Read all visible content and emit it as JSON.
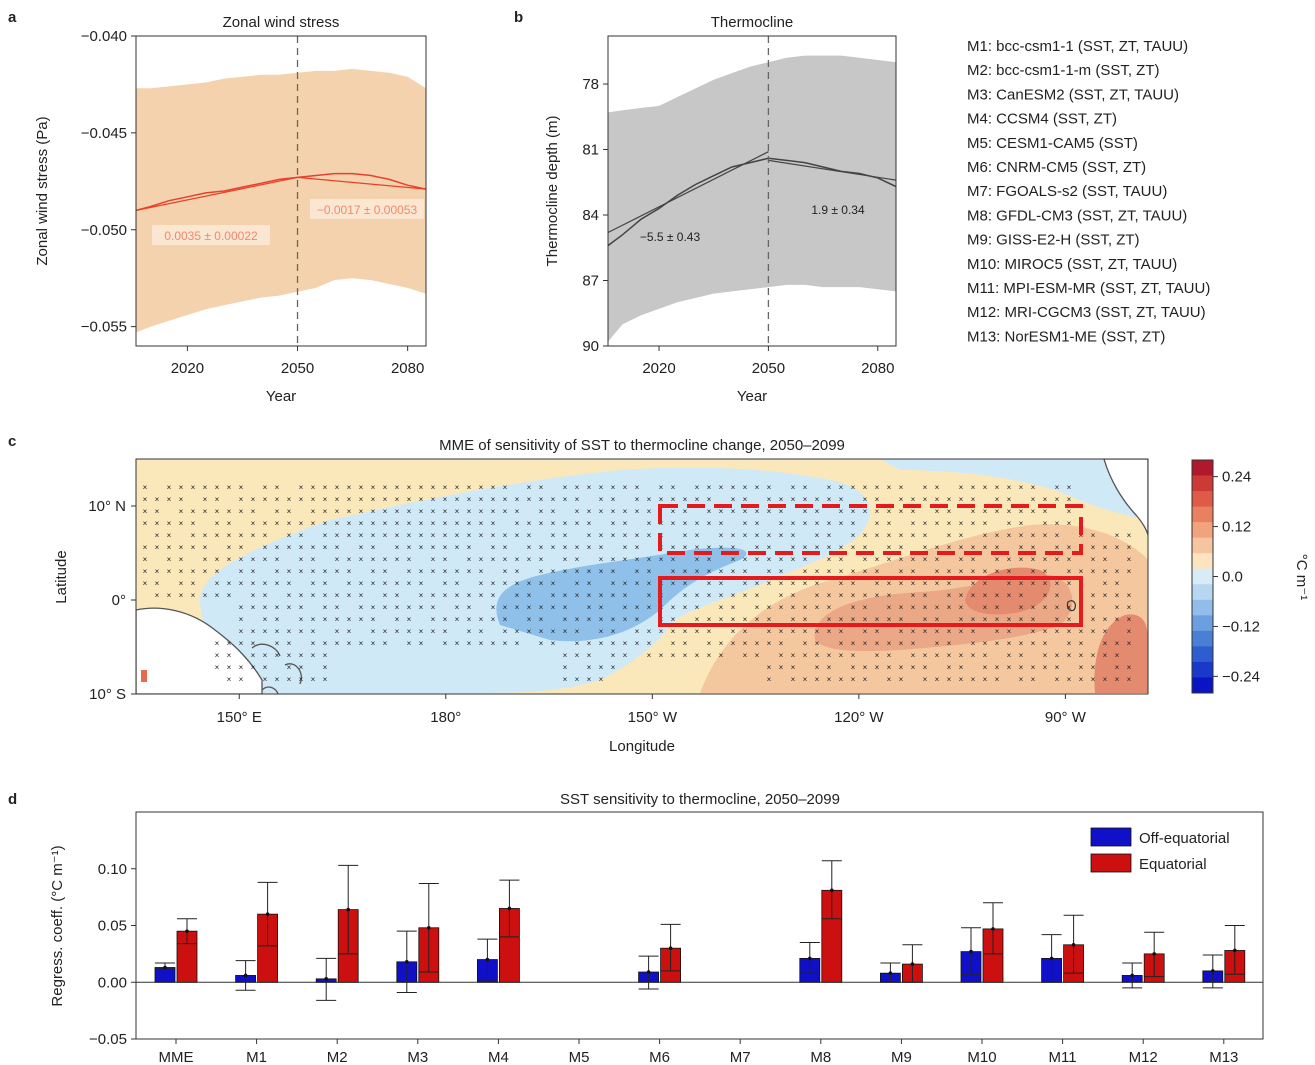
{
  "panel_letters": [
    "a",
    "b",
    "c",
    "d"
  ],
  "legend_models": [
    "M1:  bcc-csm1-1 (SST, ZT, TAUU)",
    "M2:  bcc-csm1-1-m (SST, ZT)",
    "M3:  CanESM2 (SST, ZT, TAUU)",
    "M4:  CCSM4 (SST, ZT)",
    "M5:  CESM1-CAM5 (SST)",
    "M6:  CNRM-CM5 (SST, ZT)",
    "M7:  FGOALS-s2 (SST, TAUU)",
    "M8:  GFDL-CM3 (SST, ZT, TAUU)",
    "M9:  GISS-E2-H (SST, ZT)",
    "M10:  MIROC5 (SST, ZT, TAUU)",
    "M11:  MPI-ESM-MR (SST, ZT, TAUU)",
    "M12:  MRI-CGCM3 (SST, ZT, TAUU)",
    "M13:  NorESM1-ME (SST, ZT)"
  ],
  "colors": {
    "wind_band": "#f5d2ae",
    "wind_line": "#e8402a",
    "wind_anno": "#f08a6a",
    "thermo_band": "#c7c7c7",
    "thermo_line": "#444444",
    "off_equatorial": "#1010c8",
    "equatorial": "#cc1010",
    "box_red": "#e41a1c"
  },
  "chart_data": [
    {
      "panel": "a",
      "type": "line",
      "title": "Zonal wind stress",
      "xlabel": "Year",
      "ylabel": "Zonal wind stress (Pa)",
      "xlim": [
        2006,
        2085
      ],
      "ylim": [
        -0.056,
        -0.04
      ],
      "y_inverted": true,
      "xticks": [
        "2020",
        "2050",
        "2080"
      ],
      "yticks": [
        "−0.040",
        "−0.045",
        "−0.050",
        "−0.055"
      ],
      "vline": 2050,
      "band_upper": [
        [
          2006,
          -0.0427
        ],
        [
          2010,
          -0.0427
        ],
        [
          2015,
          -0.0426
        ],
        [
          2020,
          -0.0425
        ],
        [
          2025,
          -0.0424
        ],
        [
          2030,
          -0.0422
        ],
        [
          2035,
          -0.0421
        ],
        [
          2040,
          -0.042
        ],
        [
          2045,
          -0.042
        ],
        [
          2050,
          -0.0419
        ],
        [
          2055,
          -0.0418
        ],
        [
          2060,
          -0.0418
        ],
        [
          2065,
          -0.0417
        ],
        [
          2070,
          -0.0418
        ],
        [
          2075,
          -0.0419
        ],
        [
          2080,
          -0.0421
        ],
        [
          2085,
          -0.0427
        ]
      ],
      "band_lower": [
        [
          2006,
          -0.0553
        ],
        [
          2010,
          -0.055
        ],
        [
          2015,
          -0.0547
        ],
        [
          2020,
          -0.0544
        ],
        [
          2025,
          -0.0541
        ],
        [
          2030,
          -0.0539
        ],
        [
          2035,
          -0.0537
        ],
        [
          2040,
          -0.0535
        ],
        [
          2045,
          -0.0534
        ],
        [
          2050,
          -0.0532
        ],
        [
          2055,
          -0.053
        ],
        [
          2060,
          -0.0526
        ],
        [
          2065,
          -0.0525
        ],
        [
          2070,
          -0.0526
        ],
        [
          2075,
          -0.0528
        ],
        [
          2080,
          -0.053
        ],
        [
          2085,
          -0.0533
        ]
      ],
      "series": [
        {
          "role": "mme",
          "values": [
            [
              2006,
              -0.049
            ],
            [
              2010,
              -0.0488
            ],
            [
              2015,
              -0.0485
            ],
            [
              2020,
              -0.0483
            ],
            [
              2025,
              -0.0481
            ],
            [
              2030,
              -0.048
            ],
            [
              2035,
              -0.0478
            ],
            [
              2040,
              -0.0476
            ],
            [
              2045,
              -0.0474
            ],
            [
              2050,
              -0.0473
            ],
            [
              2055,
              -0.0472
            ],
            [
              2060,
              -0.0471
            ],
            [
              2065,
              -0.0471
            ],
            [
              2070,
              -0.0472
            ],
            [
              2075,
              -0.0474
            ],
            [
              2080,
              -0.0477
            ],
            [
              2085,
              -0.0479
            ]
          ]
        },
        {
          "role": "trend",
          "values": [
            [
              2006,
              -0.049
            ],
            [
              2050,
              -0.0473
            ]
          ]
        },
        {
          "role": "trend",
          "values": [
            [
              2050,
              -0.0473
            ],
            [
              2085,
              -0.0479
            ]
          ]
        }
      ],
      "annotations": [
        "0.0035 ± 0.00022",
        "−0.0017 ± 0.00053"
      ]
    },
    {
      "panel": "b",
      "type": "line",
      "title": "Thermocline",
      "xlabel": "Year",
      "ylabel": "Thermocline depth (m)",
      "xlim": [
        2006,
        2085
      ],
      "ylim": [
        90,
        75.8
      ],
      "y_inverted": true,
      "xticks": [
        "2020",
        "2050",
        "2080"
      ],
      "yticks": [
        "78",
        "81",
        "84",
        "87",
        "90"
      ],
      "vline": 2050,
      "band_upper": [
        [
          2006,
          79.3
        ],
        [
          2010,
          79.2
        ],
        [
          2015,
          79.1
        ],
        [
          2020,
          79.0
        ],
        [
          2025,
          78.6
        ],
        [
          2030,
          78.2
        ],
        [
          2035,
          77.8
        ],
        [
          2040,
          77.5
        ],
        [
          2045,
          77.2
        ],
        [
          2050,
          77.0
        ],
        [
          2055,
          76.8
        ],
        [
          2060,
          76.7
        ],
        [
          2065,
          76.7
        ],
        [
          2070,
          76.7
        ],
        [
          2075,
          76.8
        ],
        [
          2080,
          76.9
        ],
        [
          2085,
          77.0
        ]
      ],
      "band_lower": [
        [
          2006,
          89.8
        ],
        [
          2010,
          89.0
        ],
        [
          2015,
          88.6
        ],
        [
          2020,
          88.3
        ],
        [
          2025,
          88.0
        ],
        [
          2030,
          87.8
        ],
        [
          2035,
          87.6
        ],
        [
          2040,
          87.5
        ],
        [
          2045,
          87.4
        ],
        [
          2050,
          87.3
        ],
        [
          2055,
          87.2
        ],
        [
          2060,
          87.2
        ],
        [
          2065,
          87.3
        ],
        [
          2070,
          87.3
        ],
        [
          2075,
          87.3
        ],
        [
          2080,
          87.4
        ],
        [
          2085,
          87.5
        ]
      ],
      "series": [
        {
          "role": "mme",
          "values": [
            [
              2006,
              85.4
            ],
            [
              2010,
              84.9
            ],
            [
              2015,
              84.2
            ],
            [
              2020,
              83.7
            ],
            [
              2025,
              83.1
            ],
            [
              2030,
              82.6
            ],
            [
              2035,
              82.2
            ],
            [
              2040,
              81.8
            ],
            [
              2045,
              81.6
            ],
            [
              2050,
              81.4
            ],
            [
              2055,
              81.5
            ],
            [
              2060,
              81.6
            ],
            [
              2065,
              81.8
            ],
            [
              2070,
              82.0
            ],
            [
              2075,
              82.1
            ],
            [
              2080,
              82.3
            ],
            [
              2085,
              82.7
            ]
          ]
        },
        {
          "role": "trend",
          "values": [
            [
              2006,
              84.8
            ],
            [
              2050,
              81.1
            ]
          ]
        },
        {
          "role": "trend",
          "values": [
            [
              2050,
              81.5
            ],
            [
              2085,
              82.4
            ]
          ]
        }
      ],
      "annotations": [
        "−5.5 ± 0.43",
        "1.9 ± 0.34"
      ]
    },
    {
      "panel": "c",
      "type": "heatmap",
      "title": "MME of sensitivity of SST to thermocline change, 2050–2099",
      "xlabel": "Longitude",
      "ylabel": "Latitude",
      "xlim": [
        135,
        282
      ],
      "ylim": [
        -10,
        15
      ],
      "xticks": [
        "150° E",
        "180°",
        "150° W",
        "120° W",
        "90° W"
      ],
      "yticks": [
        "10° N",
        "0°",
        "10° S"
      ],
      "colorbar_label": "°C m⁻¹",
      "colorbar_ticks": [
        "0.24",
        "0.12",
        "0.0",
        "−0.12",
        "−0.24"
      ],
      "colorbar_range": [
        -0.28,
        0.28
      ],
      "boxes": [
        {
          "style": "dashed",
          "lon": [
            210,
            270
          ],
          "lat": [
            5,
            10
          ]
        },
        {
          "style": "solid",
          "lon": [
            210,
            270
          ],
          "lat": [
            -2.5,
            2.5
          ]
        }
      ]
    },
    {
      "panel": "d",
      "type": "bar",
      "title": "SST sensitivity to thermocline, 2050–2099",
      "ylabel": "Regress. coeff. (°C m⁻¹)",
      "ylim": [
        -0.05,
        0.15
      ],
      "yticks": [
        "−0.05",
        "0.00",
        "0.05",
        "0.10"
      ],
      "categories": [
        "MME",
        "M1",
        "M2",
        "M3",
        "M4",
        "M5",
        "M6",
        "M7",
        "M8",
        "M9",
        "M10",
        "M11",
        "M12",
        "M13"
      ],
      "series": [
        {
          "name": "Off-equatorial",
          "values": [
            0.013,
            0.006,
            0.003,
            0.018,
            0.02,
            null,
            0.009,
            null,
            0.021,
            0.008,
            0.027,
            0.021,
            0.006,
            0.01
          ],
          "err_low": [
            0.012,
            -0.007,
            -0.016,
            -0.009,
            0.002,
            null,
            -0.006,
            null,
            0.008,
            0.0,
            0.007,
            0.0,
            -0.005,
            -0.005
          ],
          "err_high": [
            0.017,
            0.019,
            0.021,
            0.045,
            0.038,
            null,
            0.023,
            null,
            0.035,
            0.017,
            0.048,
            0.042,
            0.017,
            0.024
          ]
        },
        {
          "name": "Equatorial",
          "values": [
            0.045,
            0.06,
            0.064,
            0.048,
            0.065,
            null,
            0.03,
            null,
            0.081,
            0.016,
            0.047,
            0.033,
            0.025,
            0.028
          ],
          "err_low": [
            0.034,
            0.032,
            0.025,
            0.009,
            0.04,
            null,
            0.01,
            null,
            0.056,
            0.0,
            0.025,
            0.008,
            0.005,
            0.007
          ],
          "err_high": [
            0.056,
            0.088,
            0.103,
            0.087,
            0.09,
            null,
            0.051,
            null,
            0.107,
            0.033,
            0.07,
            0.059,
            0.044,
            0.05
          ]
        }
      ]
    }
  ]
}
